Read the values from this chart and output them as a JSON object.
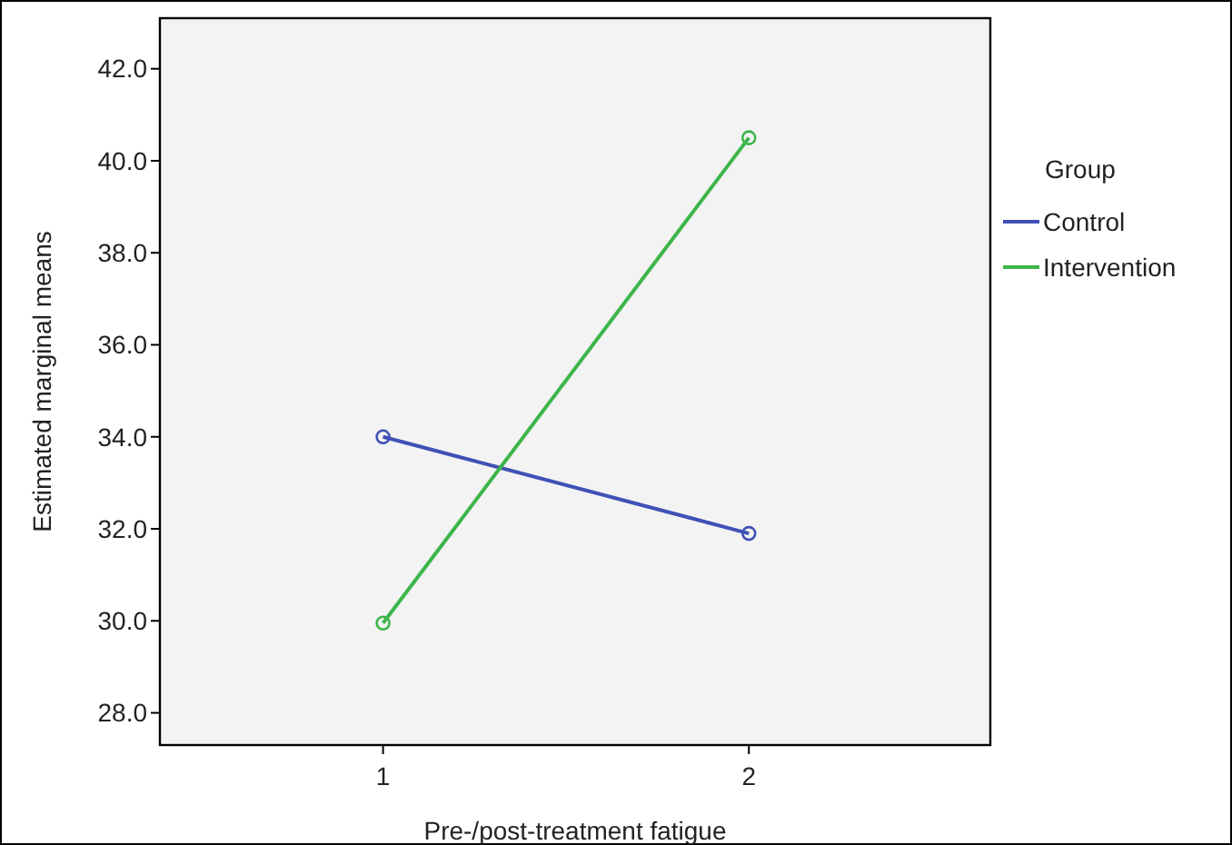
{
  "chart_data": {
    "type": "line",
    "xlabel": "Pre-/post-treatment fatigue",
    "ylabel": "Estimated marginal means",
    "legend_title": "Group",
    "legend": "right",
    "marker": "circle",
    "grid": false,
    "x": [
      1,
      2
    ],
    "xlim": [
      0.39,
      2.66
    ],
    "xticks": [
      1,
      2
    ],
    "ylim": [
      27.3,
      43.1
    ],
    "yticks": [
      {
        "value": 28,
        "label": "28.0"
      },
      {
        "value": 30,
        "label": "30.0"
      },
      {
        "value": 32,
        "label": "32.0"
      },
      {
        "value": 34,
        "label": "34.0"
      },
      {
        "value": 36,
        "label": "36.0"
      },
      {
        "value": 38,
        "label": "38.0"
      },
      {
        "value": 40,
        "label": "40.0"
      },
      {
        "value": 42,
        "label": "42.0"
      }
    ],
    "series": [
      {
        "name": "Control",
        "color": "#3f51b5",
        "values": [
          34.0,
          31.9
        ]
      },
      {
        "name": "Intervention",
        "color": "#3db54a",
        "values": [
          29.95,
          40.5
        ]
      }
    ]
  }
}
